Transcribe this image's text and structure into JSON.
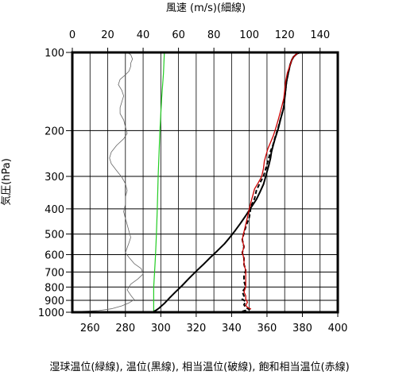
{
  "chart_data": {
    "type": "line",
    "top_axis_label": "風速 (m/s)(細線)",
    "y_axis_label": "気圧(hPa)",
    "bottom_axis_label": "湿球温位(緑線), 温位(黒線), 相当温位(破線), 飽和相当温位(赤線)",
    "top_ticks": [
      "0",
      "20",
      "40",
      "60",
      "80",
      "100",
      "120",
      "140"
    ],
    "bottom_ticks": [
      "260",
      "280",
      "300",
      "320",
      "340",
      "360",
      "380",
      "400"
    ],
    "y_ticks": [
      "100",
      "200",
      "300",
      "400",
      "500",
      "600",
      "700",
      "800",
      "900",
      "1000"
    ],
    "y_scale": "log",
    "y_range_hpa": [
      1000,
      100
    ],
    "temp_range_K": [
      250,
      400
    ],
    "wind_range_ms": [
      0,
      150
    ],
    "grid": true,
    "colors": {
      "wind": "#666666",
      "wet_bulb_potential_temp": "#22cc22",
      "potential_temp": "#000000",
      "equivalent_potential_temp": "#000000",
      "saturated_equivalent_potential_temp": "#cc0000"
    },
    "series": [
      {
        "key": "wind",
        "axis": "top",
        "points": [
          [
            4,
            993
          ],
          [
            15,
            985
          ],
          [
            22,
            970
          ],
          [
            28,
            945
          ],
          [
            32,
            920
          ],
          [
            35,
            895
          ],
          [
            33,
            860
          ],
          [
            31,
            820
          ],
          [
            33,
            780
          ],
          [
            37,
            745
          ],
          [
            40,
            712
          ],
          [
            39,
            680
          ],
          [
            35,
            650
          ],
          [
            32,
            615
          ],
          [
            30,
            590
          ],
          [
            31,
            565
          ],
          [
            32,
            540
          ],
          [
            33,
            515
          ],
          [
            32,
            488
          ],
          [
            31,
            460
          ],
          [
            30,
            435
          ],
          [
            29,
            410
          ],
          [
            30,
            385
          ],
          [
            30,
            360
          ],
          [
            31,
            340
          ],
          [
            30,
            320
          ],
          [
            28,
            302
          ],
          [
            25,
            285
          ],
          [
            22,
            268
          ],
          [
            21,
            255
          ],
          [
            22,
            242
          ],
          [
            25,
            228
          ],
          [
            29,
            215
          ],
          [
            31,
            205
          ],
          [
            30,
            193
          ],
          [
            29,
            182
          ],
          [
            27,
            172
          ],
          [
            27,
            163
          ],
          [
            28,
            155
          ],
          [
            29,
            147
          ],
          [
            28,
            140
          ],
          [
            26,
            133
          ],
          [
            27,
            127
          ],
          [
            30,
            122
          ],
          [
            32,
            118
          ],
          [
            33,
            113
          ],
          [
            33,
            110
          ],
          [
            34,
            106
          ],
          [
            33,
            102
          ],
          [
            31,
            100
          ]
        ]
      },
      {
        "key": "wet_bulb_potential_temp",
        "axis": "bottom",
        "points": [
          [
            296,
            993
          ],
          [
            296,
            900
          ],
          [
            296,
            800
          ],
          [
            296.5,
            700
          ],
          [
            297,
            600
          ],
          [
            297.5,
            500
          ],
          [
            298,
            400
          ],
          [
            298.5,
            300
          ],
          [
            299.5,
            200
          ],
          [
            300.5,
            150
          ],
          [
            301.5,
            120
          ],
          [
            302,
            100
          ]
        ]
      },
      {
        "key": "potential_temp",
        "axis": "bottom",
        "points": [
          [
            296,
            993
          ],
          [
            297,
            985
          ],
          [
            299,
            965
          ],
          [
            302,
            925
          ],
          [
            305,
            880
          ],
          [
            308,
            840
          ],
          [
            312,
            790
          ],
          [
            316,
            740
          ],
          [
            320,
            695
          ],
          [
            324,
            655
          ],
          [
            328,
            615
          ],
          [
            332,
            580
          ],
          [
            336,
            545
          ],
          [
            339,
            515
          ],
          [
            342,
            485
          ],
          [
            345,
            455
          ],
          [
            348,
            425
          ],
          [
            351,
            395
          ],
          [
            354,
            368
          ],
          [
            356,
            345
          ],
          [
            358,
            322
          ],
          [
            359,
            305
          ],
          [
            360,
            288
          ],
          [
            361,
            272
          ],
          [
            362,
            255
          ],
          [
            362.5,
            242
          ],
          [
            363.5,
            228
          ],
          [
            364.5,
            215
          ],
          [
            365.5,
            205
          ],
          [
            366.5,
            195
          ],
          [
            367.5,
            183
          ],
          [
            368.5,
            172
          ],
          [
            369.5,
            163
          ],
          [
            370,
            150
          ],
          [
            370.5,
            140
          ],
          [
            371,
            130
          ],
          [
            372,
            120
          ],
          [
            373,
            112
          ],
          [
            374,
            107
          ],
          [
            375,
            104
          ],
          [
            377,
            101
          ],
          [
            379,
            100
          ]
        ]
      },
      {
        "key": "equivalent_potential_temp",
        "axis": "bottom",
        "points": [
          [
            346,
            993
          ],
          [
            350,
            975
          ],
          [
            348,
            960
          ],
          [
            347,
            935
          ],
          [
            348,
            910
          ],
          [
            346,
            890
          ],
          [
            347,
            865
          ],
          [
            346,
            835
          ],
          [
            348,
            800
          ],
          [
            347,
            760
          ],
          [
            347,
            720
          ],
          [
            348,
            690
          ],
          [
            347,
            655
          ],
          [
            347,
            620
          ],
          [
            346,
            590
          ],
          [
            347,
            560
          ],
          [
            346,
            525
          ],
          [
            347,
            495
          ],
          [
            348,
            470
          ],
          [
            350,
            430
          ],
          [
            351,
            390
          ],
          [
            353,
            365
          ],
          [
            354,
            340
          ],
          [
            356,
            318
          ],
          [
            358,
            300
          ],
          [
            359,
            285
          ],
          [
            360,
            270
          ],
          [
            361,
            255
          ],
          [
            362,
            240
          ],
          [
            363.5,
            226
          ],
          [
            364.5,
            213
          ],
          [
            365.5,
            203
          ],
          [
            366.5,
            193
          ],
          [
            367.5,
            182
          ],
          [
            368.5,
            172
          ],
          [
            369.5,
            162
          ],
          [
            370,
            150
          ],
          [
            370.5,
            140
          ],
          [
            371,
            130
          ],
          [
            372,
            120
          ],
          [
            373,
            112
          ],
          [
            374,
            107
          ],
          [
            375,
            104
          ],
          [
            377,
            101
          ],
          [
            379,
            100
          ]
        ]
      },
      {
        "key": "saturated_equivalent_potential_temp",
        "axis": "bottom",
        "points": [
          [
            351,
            973
          ],
          [
            349,
            958
          ],
          [
            348,
            940
          ],
          [
            349,
            915
          ],
          [
            348,
            890
          ],
          [
            348,
            865
          ],
          [
            347,
            835
          ],
          [
            348,
            800
          ],
          [
            348,
            760
          ],
          [
            348,
            720
          ],
          [
            348,
            690
          ],
          [
            347,
            655
          ],
          [
            347,
            620
          ],
          [
            346,
            590
          ],
          [
            347,
            560
          ],
          [
            346,
            525
          ],
          [
            347,
            490
          ],
          [
            348,
            460
          ],
          [
            349,
            430
          ],
          [
            350,
            400
          ],
          [
            351,
            375
          ],
          [
            352,
            355
          ],
          [
            353,
            335
          ],
          [
            355,
            318
          ],
          [
            357,
            300
          ],
          [
            358,
            280
          ],
          [
            358.5,
            262
          ],
          [
            359.5,
            248
          ],
          [
            360.5,
            235
          ],
          [
            362,
            222
          ],
          [
            363.5,
            210
          ],
          [
            364.5,
            200
          ],
          [
            365.5,
            190
          ],
          [
            366.5,
            180
          ],
          [
            367.5,
            170
          ],
          [
            368.5,
            160
          ],
          [
            369.5,
            150
          ],
          [
            370,
            140
          ],
          [
            370.5,
            130
          ],
          [
            371.5,
            120
          ],
          [
            373,
            112
          ],
          [
            374,
            107
          ],
          [
            375,
            104
          ],
          [
            377,
            101
          ],
          [
            379,
            100
          ]
        ]
      }
    ]
  }
}
